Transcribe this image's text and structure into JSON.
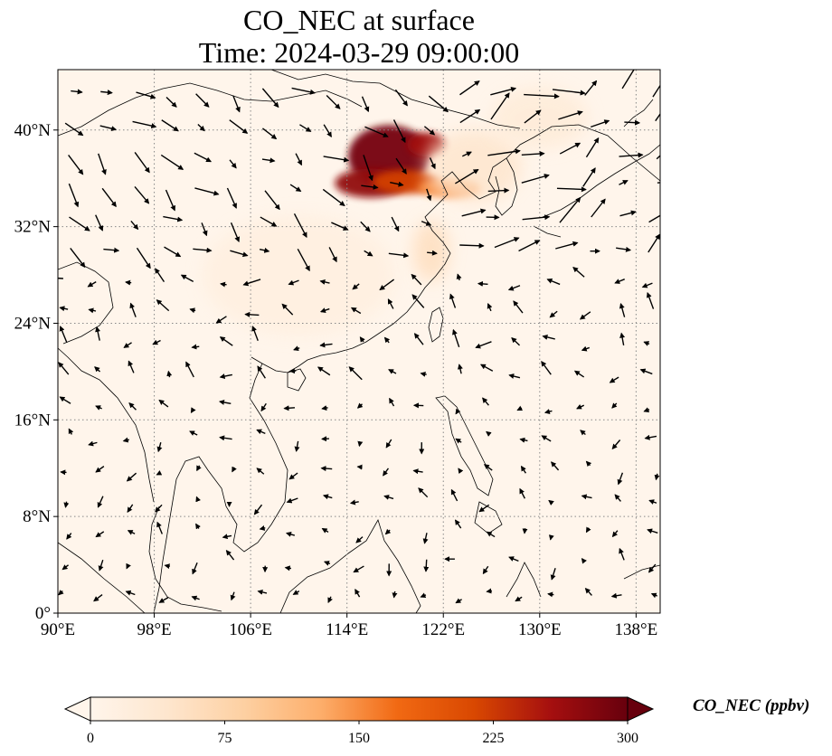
{
  "title": {
    "line1": "CO_NEC at surface",
    "line2": "Time: 2024-03-29 09:00:00"
  },
  "map": {
    "lon_range": [
      90,
      140
    ],
    "lat_range": [
      0,
      45
    ],
    "lon_ticks": [
      {
        "value": 90,
        "label": "90°E"
      },
      {
        "value": 98,
        "label": "98°E"
      },
      {
        "value": 106,
        "label": "106°E"
      },
      {
        "value": 114,
        "label": "114°E"
      },
      {
        "value": 122,
        "label": "122°E"
      },
      {
        "value": 130,
        "label": "130°E"
      },
      {
        "value": 138,
        "label": "138°E"
      }
    ],
    "lat_ticks": [
      {
        "value": 0,
        "label": "0°"
      },
      {
        "value": 8,
        "label": "8°N"
      },
      {
        "value": 16,
        "label": "16°N"
      },
      {
        "value": 24,
        "label": "24°N"
      },
      {
        "value": 32,
        "label": "32°N"
      },
      {
        "value": 40,
        "label": "40°N"
      }
    ],
    "gridlines": true,
    "background_color": "#fff5eb",
    "coastline_color": "#000000"
  },
  "colorbar": {
    "label": "CO_NEC (ppbv)",
    "colormap": "OrRd",
    "min": 0,
    "max": 300,
    "extend": "both",
    "ticks": [
      {
        "value": 0,
        "label": "0"
      },
      {
        "value": 75,
        "label": "75"
      },
      {
        "value": 150,
        "label": "150"
      },
      {
        "value": 225,
        "label": "225"
      },
      {
        "value": 300,
        "label": "300"
      }
    ],
    "stops": [
      "#fff5eb",
      "#fee6ce",
      "#fdd0a2",
      "#fdae6b",
      "#f16913",
      "#d94801",
      "#a50f0f",
      "#67000d"
    ]
  },
  "plumes": [
    {
      "lon": 117.5,
      "lat": 37.8,
      "rx": 3.4,
      "ry": 2.6,
      "value": 290
    },
    {
      "lon": 116.0,
      "lat": 35.6,
      "rx": 3.0,
      "ry": 1.2,
      "value": 270
    },
    {
      "lon": 120.6,
      "lat": 38.8,
      "rx": 1.6,
      "ry": 1.0,
      "value": 260
    },
    {
      "lon": 118.9,
      "lat": 35.7,
      "rx": 2.8,
      "ry": 1.0,
      "value": 220
    },
    {
      "lon": 122.5,
      "lat": 35.2,
      "rx": 2.6,
      "ry": 0.8,
      "value": 150
    },
    {
      "lon": 124.5,
      "lat": 37.0,
      "rx": 4.0,
      "ry": 3.0,
      "value": 45
    },
    {
      "lon": 130.0,
      "lat": 41.0,
      "rx": 4.0,
      "ry": 2.5,
      "value": 30
    },
    {
      "lon": 110.0,
      "lat": 28.0,
      "rx": 8.0,
      "ry": 5.0,
      "value": 18
    },
    {
      "lon": 121.0,
      "lat": 30.0,
      "rx": 1.5,
      "ry": 2.5,
      "value": 60
    }
  ]
}
